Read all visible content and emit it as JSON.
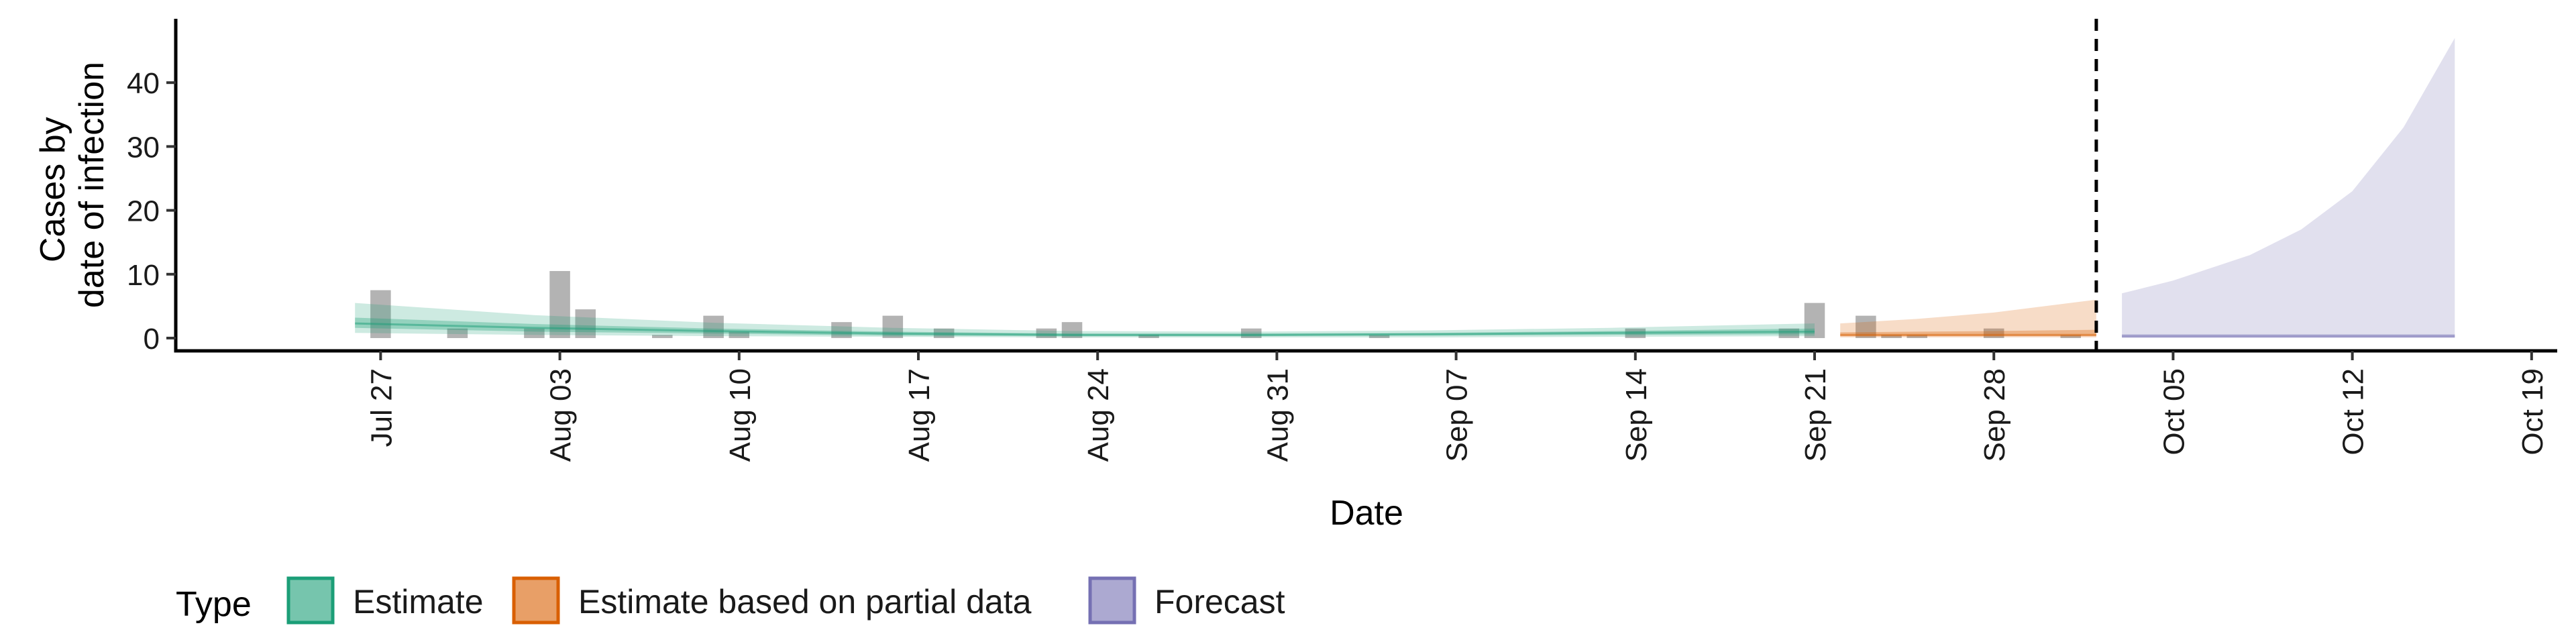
{
  "chart_data": {
    "type": "area",
    "xlabel": "Date",
    "ylabel_lines": [
      "Cases by",
      "date of infection"
    ],
    "ylim": [
      -2,
      50
    ],
    "yticks": [
      0,
      10,
      20,
      30,
      40
    ],
    "xlim": [
      "2020-07-19",
      "2020-10-20"
    ],
    "xticks": [
      {
        "date": "2020-07-27",
        "label": "Jul 27"
      },
      {
        "date": "2020-08-03",
        "label": "Aug 03"
      },
      {
        "date": "2020-08-10",
        "label": "Aug 10"
      },
      {
        "date": "2020-08-17",
        "label": "Aug 17"
      },
      {
        "date": "2020-08-24",
        "label": "Aug 24"
      },
      {
        "date": "2020-08-31",
        "label": "Aug 31"
      },
      {
        "date": "2020-09-07",
        "label": "Sep 07"
      },
      {
        "date": "2020-09-14",
        "label": "Sep 14"
      },
      {
        "date": "2020-09-21",
        "label": "Sep 21"
      },
      {
        "date": "2020-09-28",
        "label": "Sep 28"
      },
      {
        "date": "2020-10-05",
        "label": "Oct 05"
      },
      {
        "date": "2020-10-12",
        "label": "Oct 12"
      },
      {
        "date": "2020-10-19",
        "label": "Oct 19"
      }
    ],
    "vline_date": "2020-10-02",
    "grid": false,
    "legend": {
      "title": "Type",
      "position": "bottom",
      "items": [
        {
          "label": "Estimate",
          "fill": "#1b9e77"
        },
        {
          "label": "Estimate based on partial data",
          "fill": "#d95f02"
        },
        {
          "label": "Forecast",
          "fill": "#7570b3"
        }
      ]
    },
    "bars": {
      "color": "#b3b3b3",
      "dates": [
        "2020-07-27",
        "2020-07-30",
        "2020-08-02",
        "2020-08-03",
        "2020-08-04",
        "2020-08-07",
        "2020-08-09",
        "2020-08-10",
        "2020-08-14",
        "2020-08-16",
        "2020-08-18",
        "2020-08-22",
        "2020-08-23",
        "2020-08-26",
        "2020-08-30",
        "2020-09-04",
        "2020-09-14",
        "2020-09-20",
        "2020-09-21",
        "2020-09-23",
        "2020-09-24",
        "2020-09-25",
        "2020-09-28",
        "2020-10-01"
      ],
      "values": [
        7.5,
        1.5,
        1.5,
        10.5,
        4.5,
        0.5,
        3.5,
        1,
        2.5,
        3.5,
        1.5,
        1.5,
        2.5,
        0.5,
        1.5,
        0.5,
        1.5,
        1.5,
        5.5,
        3.5,
        0.5,
        0.5,
        1.5,
        0.5
      ]
    },
    "series": [
      {
        "name": "Estimate",
        "color": "#1b9e77",
        "x": [
          "2020-07-26",
          "2020-08-02",
          "2020-08-09",
          "2020-08-16",
          "2020-08-23",
          "2020-08-30",
          "2020-09-06",
          "2020-09-13",
          "2020-09-21"
        ],
        "outer_low": [
          0.8,
          0.5,
          0.3,
          0.2,
          0.1,
          0.1,
          0.1,
          0.2,
          0.3
        ],
        "outer_high": [
          5.5,
          3.6,
          2.4,
          1.6,
          1.1,
          1.0,
          1.2,
          1.6,
          2.3
        ],
        "inner_low": [
          1.6,
          1.0,
          0.7,
          0.4,
          0.3,
          0.3,
          0.4,
          0.5,
          0.6
        ],
        "inner_high": [
          3.2,
          2.2,
          1.5,
          1.0,
          0.7,
          0.7,
          0.8,
          1.1,
          1.5
        ],
        "median": [
          2.3,
          1.6,
          1.1,
          0.7,
          0.5,
          0.5,
          0.6,
          0.8,
          1.0
        ]
      },
      {
        "name": "Estimate based on partial data",
        "color": "#d95f02",
        "x": [
          "2020-09-22",
          "2020-09-25",
          "2020-09-28",
          "2020-10-02"
        ],
        "outer_low": [
          0.1,
          0.1,
          0.1,
          0.1
        ],
        "outer_high": [
          2.3,
          3.0,
          4.0,
          6.0
        ],
        "inner_low": [
          0.3,
          0.3,
          0.3,
          0.3
        ],
        "inner_high": [
          0.9,
          1.0,
          1.1,
          1.3
        ],
        "median": [
          0.5,
          0.5,
          0.5,
          0.5
        ]
      },
      {
        "name": "Forecast",
        "color": "#7570b3",
        "x": [
          "2020-10-03",
          "2020-10-05",
          "2020-10-08",
          "2020-10-10",
          "2020-10-12",
          "2020-10-14",
          "2020-10-16"
        ],
        "outer_low": [
          0,
          0,
          0,
          0,
          0,
          0,
          0
        ],
        "outer_high": [
          7.0,
          9.0,
          13.0,
          17.0,
          23.0,
          33.0,
          47.0
        ],
        "inner_low": [
          0.1,
          0.1,
          0.1,
          0.1,
          0.1,
          0.1,
          0.1
        ],
        "inner_high": [
          0.6,
          0.6,
          0.6,
          0.6,
          0.6,
          0.6,
          0.6
        ],
        "median": [
          0.3,
          0.3,
          0.3,
          0.3,
          0.3,
          0.3,
          0.3
        ]
      }
    ]
  }
}
